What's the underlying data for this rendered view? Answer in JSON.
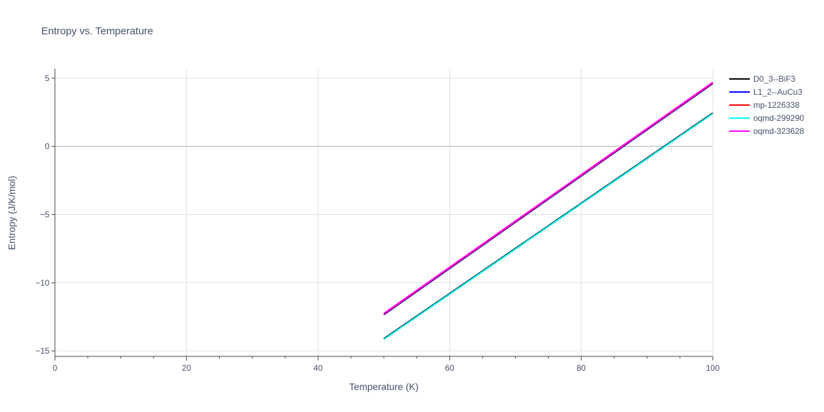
{
  "chart_data": {
    "type": "line",
    "title": "Entropy vs. Temperature",
    "xlabel": "Temperature (K)",
    "ylabel": "Entropy (J/K/mol)",
    "xlim": [
      0,
      100
    ],
    "ylim": [
      -15.4,
      5.7
    ],
    "x_ticks": [
      0,
      20,
      40,
      60,
      80,
      100
    ],
    "x_tick_labels": [
      "0",
      "20",
      "40",
      "60",
      "80",
      "100"
    ],
    "x_minor_step": 5,
    "y_ticks": [
      5,
      0,
      -5,
      -10,
      -15
    ],
    "y_tick_labels": [
      "5",
      "0",
      "−5",
      "−10",
      "−15"
    ],
    "grid": true,
    "legend_position": "right",
    "series": [
      {
        "name": "D0_3--BiF3",
        "color": "#000000",
        "x": [
          50,
          100
        ],
        "y": [
          -14.1,
          2.45
        ]
      },
      {
        "name": "L1_2--AuCu3",
        "color": "#0000ff",
        "x": [
          50,
          100
        ],
        "y": [
          -12.35,
          4.6
        ]
      },
      {
        "name": "mp-1226338",
        "color": "#ff0000",
        "x": [
          50,
          100
        ],
        "y": [
          -12.3,
          4.65
        ]
      },
      {
        "name": "oqmd-299290",
        "color": "#00ffff",
        "x": [
          50,
          100
        ],
        "y": [
          -14.15,
          2.4
        ]
      },
      {
        "name": "oqmd-323628",
        "color": "#ff00ff",
        "x": [
          50,
          100
        ],
        "y": [
          -12.25,
          4.7
        ]
      }
    ]
  }
}
